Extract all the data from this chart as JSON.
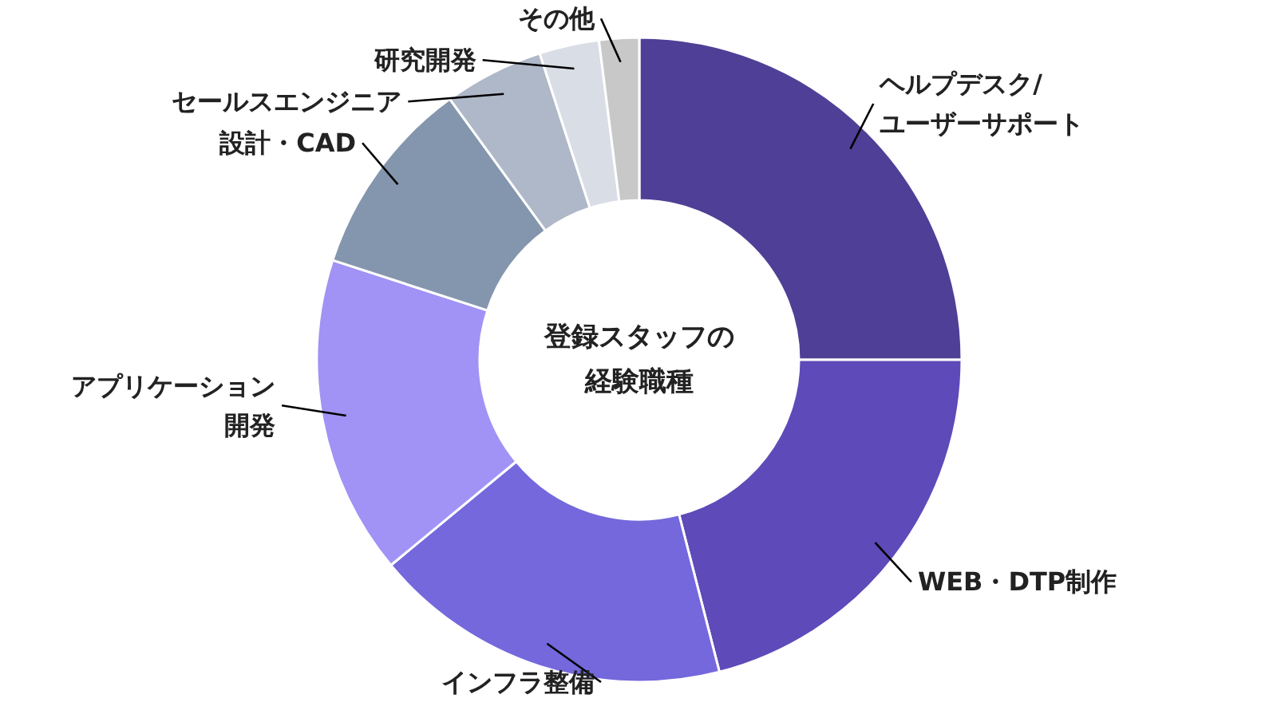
{
  "chart_data": {
    "type": "donut",
    "title": "登録スタッフの経験職種",
    "categories": [
      "ヘルプデスク/ユーザーサポート",
      "WEB・DTP制作",
      "インフラ整備",
      "アプリケーション開発",
      "設計・CAD",
      "セールスエンジニア",
      "研究開発",
      "その他"
    ],
    "values": [
      25,
      21,
      18,
      16,
      10,
      5,
      3,
      2
    ],
    "colors": [
      "#4f3f96",
      "#5e4ab8",
      "#7468dc",
      "#a093f5",
      "#8496ae",
      "#afb8c8",
      "#d9dde5",
      "#c8c8c8"
    ]
  }
}
